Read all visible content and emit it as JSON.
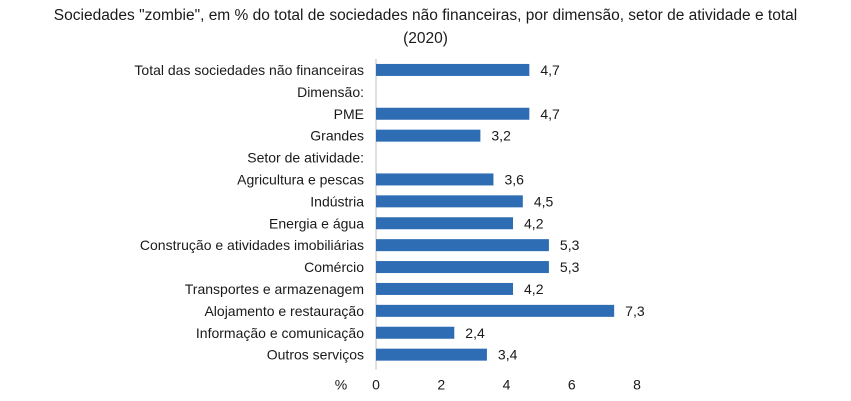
{
  "title_line1": "Sociedades \"zombie\", em % do total de sociedades não financeiras, por dimensão, setor de atividade e total",
  "title_line2": "(2020)",
  "chart_data": {
    "type": "bar",
    "orientation": "horizontal",
    "categories": [
      "Total das sociedades não financeiras",
      "Dimensão:",
      "PME",
      "Grandes",
      "Setor de atividade:",
      "Agricultura e pescas",
      "Indústria",
      "Energia e água",
      "Construção e atividades imobiliárias",
      "Comércio",
      "Transportes e armazenagem",
      "Alojamento e restauração",
      "Informação e comunicação",
      "Outros serviços"
    ],
    "values": [
      4.7,
      null,
      4.7,
      3.2,
      null,
      3.6,
      4.5,
      4.2,
      5.3,
      5.3,
      4.2,
      7.3,
      2.4,
      3.4
    ],
    "value_labels": [
      "4,7",
      "",
      "4,7",
      "3,2",
      "",
      "3,6",
      "4,5",
      "4,2",
      "5,3",
      "5,3",
      "4,2",
      "7,3",
      "2,4",
      "3,4"
    ],
    "xlabel": "%",
    "xlim": [
      0,
      8
    ],
    "xticks": [
      0,
      2,
      4,
      6,
      8
    ],
    "bar_color": "#2e6db4",
    "grid": false,
    "legend": "none"
  }
}
